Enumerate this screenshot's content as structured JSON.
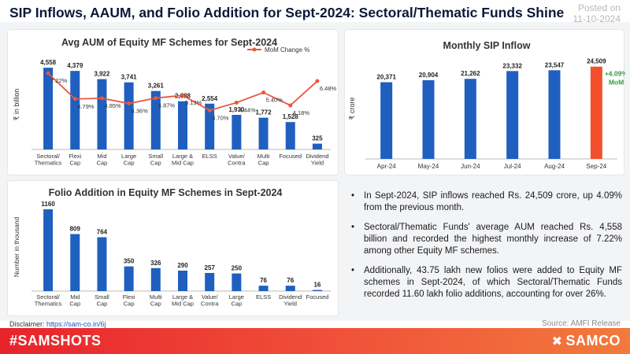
{
  "title": "SIP Inflows, AAUM, and Folio Addition for Sept-2024: Sectoral/Thematic Funds Shine",
  "posted": {
    "label": "Posted on",
    "date": "11-10-2024"
  },
  "bullets": [
    "In Sept-2024, SIP inflows reached Rs. 24,509 crore, up 4.09% from the previous month.",
    "Sectoral/Thematic Funds' average AUM reached Rs. 4,558 billion and recorded the highest monthly increase of 7.22% among other Equity MF schemes.",
    "Additionally, 43.75 lakh new folios were added to Equity MF schemes in Sept-2024, of which Sectoral/Thematic Funds recorded 11.60 lakh folio additions, accounting for over 26%."
  ],
  "disclaimer": {
    "label": "Disclaimer: ",
    "link": "https://sam-co.in/6j"
  },
  "source": "Source: AMFI Release",
  "footer": {
    "hashtag": "#SAMSHOTS",
    "brand": "SAMCO",
    "brand_icon": "samco-logo-icon"
  },
  "colors": {
    "bar": "#1f5fbf",
    "line": "#e9573f",
    "highlight": "#f2502c",
    "mom_text": "#2e9e3f"
  },
  "chart_data": [
    {
      "type": "bar",
      "title": "Avg AUM of Equity MF Schemes for Sept-2024",
      "ylabel": "₹ in billion",
      "xlabel": "",
      "categories": [
        "Sectoral/ Thematics",
        "Flexi Cap",
        "Mid Cap",
        "Large Cap",
        "Small Cap",
        "Large & Mid Cap",
        "ELSS",
        "Value/ Contra",
        "Multi Cap",
        "Focused",
        "Dividend Yield"
      ],
      "series": [
        {
          "values": [
            4558,
            4379,
            3922,
            3741,
            3261,
            2688,
            2554,
            1930,
            1772,
            1528,
            325
          ],
          "labels": [
            "4,558",
            "4,379",
            "3,922",
            "3,741",
            "3,261",
            "2,688",
            "2,554",
            "1,930",
            "1,772",
            "1,528",
            "325"
          ]
        },
        {
          "name": "MoM Change %",
          "type": "line",
          "values": [
            7.22,
            4.79,
            4.85,
            4.36,
            4.87,
            5.13,
            3.7,
            4.44,
            5.4,
            4.18,
            6.48
          ],
          "labels": [
            "7.22%",
            "4.79%",
            "4.85%",
            "4.36%",
            "4.87%",
            "5.13%",
            "3.70%",
            "4.44%",
            "5.40%",
            "4.18%",
            "6.48%"
          ]
        }
      ],
      "ylim": [
        0,
        5000
      ],
      "y2lim": [
        0,
        8.5
      ],
      "legend": "top-right"
    },
    {
      "type": "bar",
      "title": "Monthly SIP Inflow",
      "ylabel": "₹ crore",
      "xlabel": "",
      "categories": [
        "Apr-24",
        "May-24",
        "Jun-24",
        "Jul-24",
        "Aug-24",
        "Sep-24"
      ],
      "values": [
        20371,
        20904,
        21262,
        23332,
        23547,
        24509
      ],
      "labels": [
        "20,371",
        "20,904",
        "21,262",
        "23,332",
        "23,547",
        "24,509"
      ],
      "ylim": [
        0,
        28000
      ],
      "annotation": {
        "text_top": "+4.09%",
        "text_bottom": "MoM"
      }
    },
    {
      "type": "bar",
      "title": "Folio Addition in Equity MF Schemes in Sept-2024",
      "ylabel": "Number in thousand",
      "xlabel": "",
      "categories": [
        "Sectoral/ Thematics",
        "Mid Cap",
        "Small Cap",
        "Flexi Cap",
        "Multi Cap",
        "Large & Mid Cap",
        "Value/ Contra",
        "Large Cap",
        "ELSS",
        "Dividend Yield",
        "Focused"
      ],
      "values": [
        1160,
        809,
        764,
        350,
        326,
        290,
        257,
        250,
        76,
        76,
        16
      ],
      "labels": [
        "1160",
        "809",
        "764",
        "350",
        "326",
        "290",
        "257",
        "250",
        "76",
        "76",
        "16"
      ],
      "ylim": [
        0,
        1250
      ]
    }
  ]
}
